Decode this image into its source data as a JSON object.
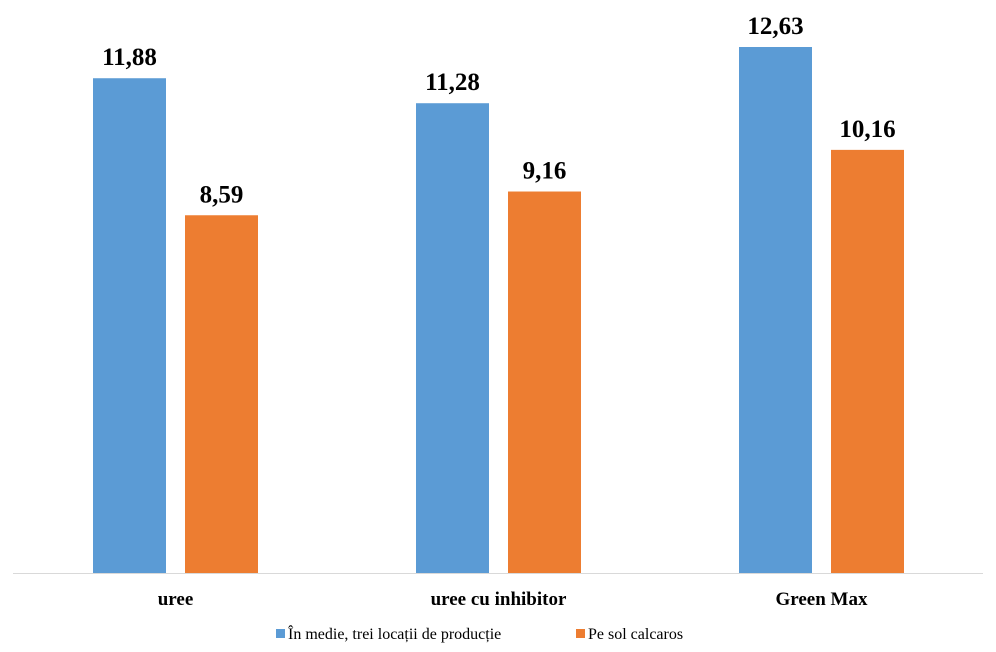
{
  "chart_data": {
    "type": "bar",
    "categories": [
      "uree",
      "uree cu inhibitor",
      "Green Max"
    ],
    "series": [
      {
        "name": "În medie, trei locații de producție",
        "values": [
          11.88,
          11.28,
          12.63
        ],
        "value_labels": [
          "11,88",
          "11,28",
          "12,63"
        ],
        "color": "#5b9bd5"
      },
      {
        "name": "Pe sol calcaros",
        "values": [
          8.59,
          9.16,
          10.16
        ],
        "value_labels": [
          "8,59",
          "9,16",
          "10,16"
        ],
        "color": "#ed7d31"
      }
    ],
    "ylim": [
      0,
      12.63
    ],
    "title": "",
    "xlabel": "",
    "ylabel": "",
    "grid": false,
    "legend_position": "bottom",
    "baseline_color": "#d9d9d9"
  }
}
